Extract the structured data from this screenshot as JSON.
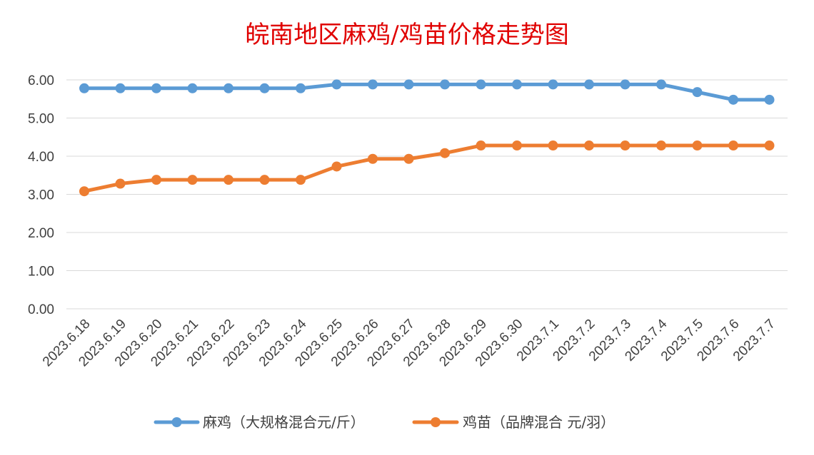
{
  "chart_data": {
    "type": "line",
    "title": "皖南地区麻鸡/鸡苗价格走势图",
    "title_color": "#e00000",
    "xlabel": "",
    "ylabel": "",
    "ylim": [
      0,
      6
    ],
    "yticks": [
      "0.00",
      "1.00",
      "2.00",
      "3.00",
      "4.00",
      "5.00",
      "6.00"
    ],
    "grid": true,
    "legend_position": "bottom",
    "categories": [
      "2023.6.18",
      "2023.6.19",
      "2023.6.20",
      "2023.6.21",
      "2023.6.22",
      "2023.6.23",
      "2023.6.24",
      "2023.6.25",
      "2023.6.26",
      "2023.6.27",
      "2023.6.28",
      "2023.6.29",
      "2023.6.30",
      "2023.7.1",
      "2023.7.2",
      "2023.7.3",
      "2023.7.4",
      "2023.7.5",
      "2023.7.6",
      "2023.7.7"
    ],
    "series": [
      {
        "name": "麻鸡（大规格混合元/斤）",
        "color": "#5b9bd5",
        "values": [
          5.78,
          5.78,
          5.78,
          5.78,
          5.78,
          5.78,
          5.78,
          5.88,
          5.88,
          5.88,
          5.88,
          5.88,
          5.88,
          5.88,
          5.88,
          5.88,
          5.88,
          5.68,
          5.48,
          5.48
        ]
      },
      {
        "name": "鸡苗（品牌混合 元/羽）",
        "color": "#ed7d31",
        "values": [
          3.08,
          3.28,
          3.38,
          3.38,
          3.38,
          3.38,
          3.38,
          3.73,
          3.93,
          3.93,
          4.08,
          4.28,
          4.28,
          4.28,
          4.28,
          4.28,
          4.28,
          4.28,
          4.28,
          4.28
        ]
      }
    ]
  }
}
